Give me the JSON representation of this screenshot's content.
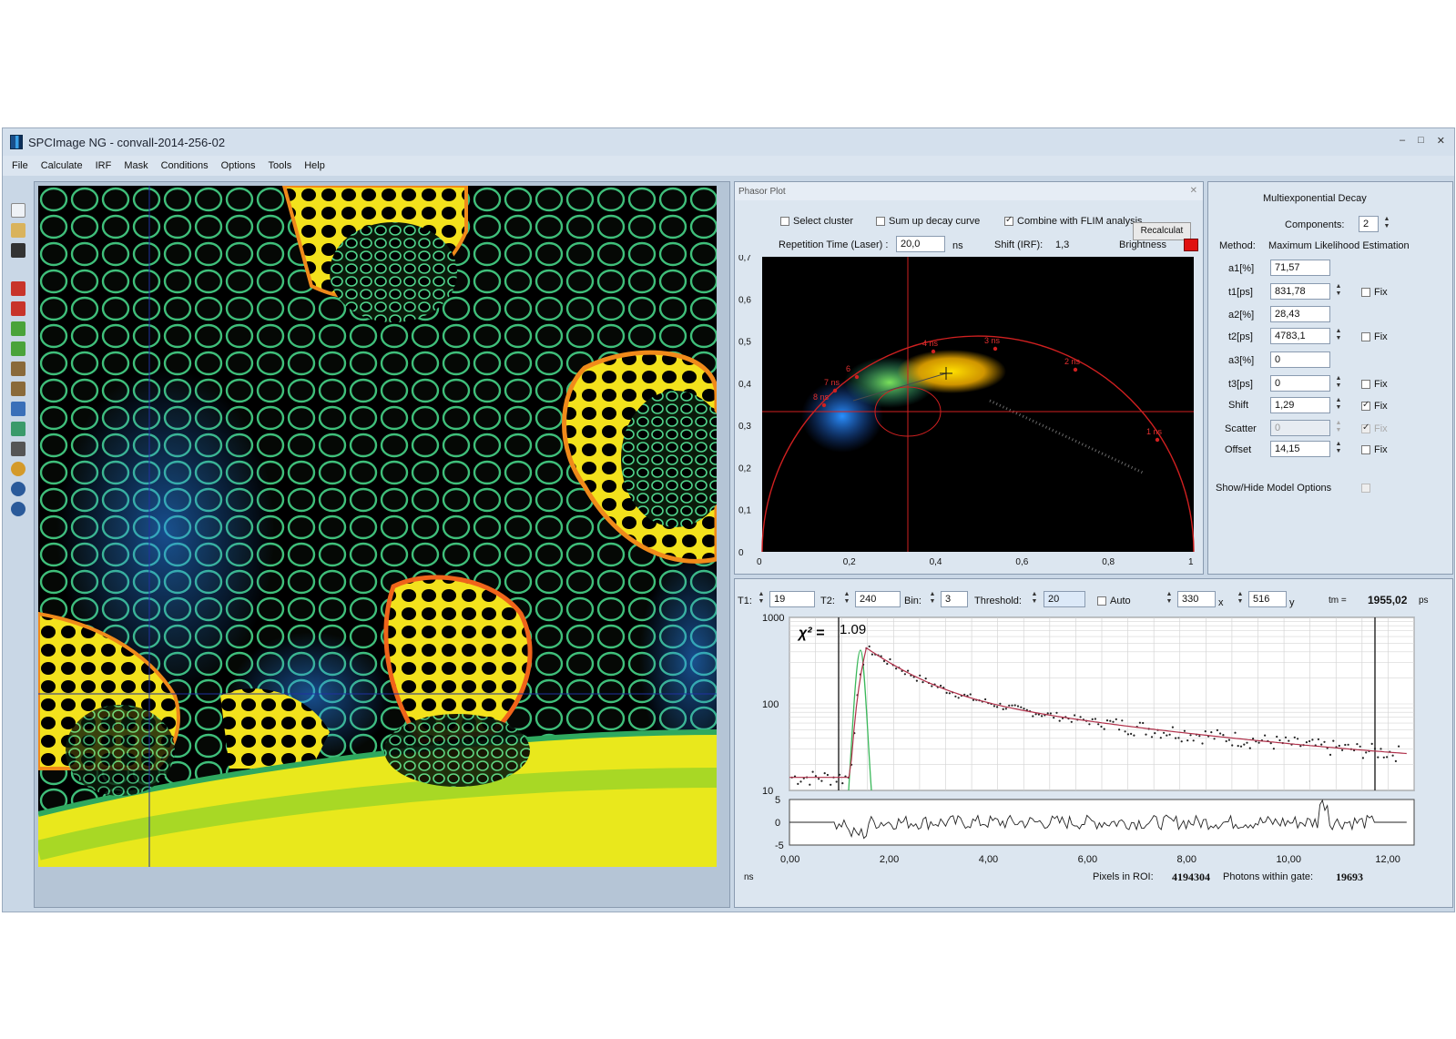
{
  "window": {
    "title": "SPCImage NG - convall-2014-256-02",
    "controls": [
      "–",
      "□",
      "✕"
    ]
  },
  "menu": [
    "File",
    "Calculate",
    "IRF",
    "Mask",
    "Conditions",
    "Options",
    "Tools",
    "Help"
  ],
  "toolbar_icons": [
    "new-icon",
    "open-icon",
    "save-icon",
    "lock-icon",
    "unlock-icon",
    "arrow-left-icon",
    "arrow-right-icon",
    "clipboard-icon",
    "clipboard-copy-icon",
    "frame-icon",
    "grid-icon",
    "camera-icon",
    "globe-icon",
    "zoom-in-icon",
    "zoom-out-icon"
  ],
  "phasor": {
    "panel_title": "Phasor Plot",
    "select_cluster": "Select cluster",
    "sum_up": "Sum up decay curve",
    "combine": "Combine with FLIM analysis",
    "recalculate": "Recalculat",
    "rep_time_label": "Repetition Time (Laser) :",
    "rep_time_value": "20,0",
    "rep_time_unit": "ns",
    "shift_label": "Shift (IRF):",
    "shift_value": "1,3",
    "brightness_label": "Brightness",
    "brightness_color": "#e01010",
    "y_ticks": [
      "0,7",
      "0,6",
      "0,5",
      "0,4",
      "0,3",
      "0,2",
      "0,1",
      "0"
    ],
    "x_ticks": [
      "0",
      "0,2",
      "0,4",
      "0,6",
      "0,8",
      "1"
    ],
    "ns_labels": [
      "1 ns",
      "2 ns",
      "3 ns",
      "4 ns",
      "6",
      "7 ns",
      "8 ns"
    ]
  },
  "fit": {
    "title": "Multiexponential Decay",
    "components_label": "Components:",
    "components_value": "2",
    "method_label": "Method:",
    "method_value": "Maximum Likelihood Estimation",
    "rows": [
      {
        "label": "a1[%]",
        "value": "71,57"
      },
      {
        "label": "t1[ps]",
        "value": "831,78",
        "fix": "Fix"
      },
      {
        "label": "a2[%]",
        "value": "28,43"
      },
      {
        "label": "t2[ps]",
        "value": "4783,1",
        "fix": "Fix"
      },
      {
        "label": "a3[%]",
        "value": "0"
      },
      {
        "label": "t3[ps]",
        "value": "0",
        "fix": "Fix"
      },
      {
        "label": "Shift",
        "value": "1,29",
        "fix": "Fix"
      },
      {
        "label": "Scatter",
        "value": "0",
        "fix": "Fix"
      },
      {
        "label": "Offset",
        "value": "14,15",
        "fix": "Fix"
      }
    ],
    "show_hide": "Show/Hide Model Options"
  },
  "decay": {
    "t1_label": "T1:",
    "t1_value": "19",
    "t2_label": "T2:",
    "t2_value": "240",
    "bin_label": "Bin:",
    "bin_value": "3",
    "threshold_label": "Threshold:",
    "threshold_value": "20",
    "auto_label": "Auto",
    "x_value": "330",
    "x_unit": "x",
    "y_value": "516",
    "y_unit": "y",
    "tm_label": "tm =",
    "tm_value": "1955,02",
    "tm_unit": "ps",
    "chi_label": "χ² =",
    "chi_value": "1.09",
    "y_ticks": [
      "1000",
      "100",
      "10"
    ],
    "res_ticks": [
      "5",
      "0",
      "-5"
    ],
    "x_ticks": [
      "0,00",
      "2,00",
      "4,00",
      "6,00",
      "8,00",
      "10,00",
      "12,00"
    ],
    "x_unit_label": "ns",
    "pixels_label": "Pixels in ROI:",
    "pixels_value": "4194304",
    "photons_label": "Photons within gate:",
    "photons_value": "19693"
  }
}
